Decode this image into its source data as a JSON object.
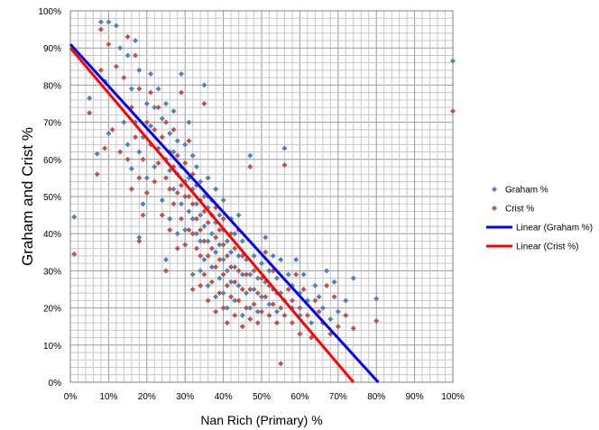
{
  "chart_data": {
    "type": "scatter",
    "xlabel": "Nan Rich (Primary) %",
    "ylabel": "Graham and Crist  %",
    "xlim": [
      0,
      100
    ],
    "ylim": [
      0,
      100
    ],
    "x_ticks": [
      "0%",
      "10%",
      "20%",
      "30%",
      "40%",
      "50%",
      "60%",
      "70%",
      "80%",
      "90%",
      "100%"
    ],
    "y_ticks": [
      "0%",
      "10%",
      "20%",
      "30%",
      "40%",
      "50%",
      "60%",
      "70%",
      "80%",
      "90%",
      "100%"
    ],
    "grid": true,
    "legend_position": "right",
    "series": [
      {
        "name": "Graham %",
        "kind": "scatter",
        "color": "#4f81bd",
        "marker": "diamond",
        "points": [
          [
            1,
            44.5
          ],
          [
            5,
            76.5
          ],
          [
            7,
            61.5
          ],
          [
            8,
            97
          ],
          [
            9,
            81
          ],
          [
            10,
            67
          ],
          [
            10,
            97
          ],
          [
            12,
            96
          ],
          [
            13,
            90
          ],
          [
            14,
            70
          ],
          [
            15,
            64
          ],
          [
            15,
            88
          ],
          [
            16,
            57.5
          ],
          [
            16,
            79
          ],
          [
            17,
            70
          ],
          [
            17,
            92
          ],
          [
            18,
            39
          ],
          [
            18,
            62
          ],
          [
            18,
            84
          ],
          [
            19,
            48
          ],
          [
            19,
            66
          ],
          [
            20,
            55
          ],
          [
            20,
            75
          ],
          [
            21,
            69
          ],
          [
            21,
            83
          ],
          [
            22,
            58
          ],
          [
            22,
            74
          ],
          [
            23,
            63
          ],
          [
            23,
            79
          ],
          [
            24,
            49
          ],
          [
            24,
            71
          ],
          [
            25,
            33
          ],
          [
            25,
            60
          ],
          [
            25,
            75
          ],
          [
            26,
            44
          ],
          [
            26,
            57
          ],
          [
            26,
            67
          ],
          [
            27,
            52
          ],
          [
            27,
            62
          ],
          [
            27,
            73
          ],
          [
            28,
            40
          ],
          [
            28,
            56
          ],
          [
            28,
            65
          ],
          [
            29,
            48
          ],
          [
            29,
            58
          ],
          [
            29,
            83
          ],
          [
            30,
            41
          ],
          [
            30,
            54
          ],
          [
            30,
            64
          ],
          [
            31,
            46
          ],
          [
            31,
            55
          ],
          [
            31,
            70
          ],
          [
            32,
            29
          ],
          [
            32,
            44
          ],
          [
            32,
            52
          ],
          [
            32,
            61
          ],
          [
            33,
            40
          ],
          [
            33,
            48
          ],
          [
            33,
            58
          ],
          [
            34,
            30
          ],
          [
            34,
            38
          ],
          [
            34,
            45
          ],
          [
            34,
            54
          ],
          [
            35,
            33
          ],
          [
            35,
            42
          ],
          [
            35,
            50
          ],
          [
            35,
            80
          ],
          [
            36,
            26
          ],
          [
            36,
            38
          ],
          [
            36,
            47
          ],
          [
            36,
            55
          ],
          [
            37,
            31
          ],
          [
            37,
            40
          ],
          [
            37,
            49
          ],
          [
            38,
            23
          ],
          [
            38,
            35
          ],
          [
            38,
            43
          ],
          [
            38,
            52
          ],
          [
            39,
            28
          ],
          [
            39,
            37
          ],
          [
            39,
            45
          ],
          [
            40,
            24
          ],
          [
            40,
            33
          ],
          [
            40,
            41
          ],
          [
            40,
            49
          ],
          [
            41,
            20
          ],
          [
            41,
            30
          ],
          [
            41,
            38
          ],
          [
            42,
            27
          ],
          [
            42,
            35
          ],
          [
            42,
            44
          ],
          [
            43,
            22
          ],
          [
            43,
            31
          ],
          [
            43,
            40
          ],
          [
            44,
            26
          ],
          [
            44,
            34
          ],
          [
            44,
            45
          ],
          [
            45,
            18
          ],
          [
            45,
            29
          ],
          [
            45,
            38
          ],
          [
            46,
            24
          ],
          [
            46,
            33
          ],
          [
            47,
            20
          ],
          [
            47,
            29
          ],
          [
            47,
            61
          ],
          [
            48,
            25
          ],
          [
            48,
            34
          ],
          [
            49,
            19
          ],
          [
            49,
            28
          ],
          [
            50,
            23
          ],
          [
            50,
            32
          ],
          [
            51,
            27
          ],
          [
            51,
            39
          ],
          [
            52,
            21
          ],
          [
            52,
            30
          ],
          [
            53,
            25
          ],
          [
            53,
            34
          ],
          [
            54,
            19
          ],
          [
            54,
            28
          ],
          [
            55,
            24
          ],
          [
            55,
            33
          ],
          [
            56,
            63
          ],
          [
            56,
            22
          ],
          [
            57,
            29
          ],
          [
            58,
            20
          ],
          [
            58,
            26
          ],
          [
            59,
            33
          ],
          [
            60,
            24
          ],
          [
            60,
            18
          ],
          [
            61,
            29
          ],
          [
            62,
            22
          ],
          [
            63,
            16
          ],
          [
            64,
            26
          ],
          [
            65,
            23
          ],
          [
            66,
            20
          ],
          [
            67,
            30
          ],
          [
            68,
            17
          ],
          [
            69,
            27
          ],
          [
            70,
            19
          ],
          [
            72,
            22
          ],
          [
            74,
            28
          ],
          [
            80,
            22.5
          ],
          [
            100,
            86.5
          ]
        ]
      },
      {
        "name": "Crist %",
        "kind": "scatter",
        "color": "#c0504d",
        "marker": "diamond",
        "points": [
          [
            1,
            34.5
          ],
          [
            5,
            72.5
          ],
          [
            7,
            56
          ],
          [
            8,
            95
          ],
          [
            8,
            84
          ],
          [
            9,
            63
          ],
          [
            10,
            91
          ],
          [
            11,
            68
          ],
          [
            12,
            85
          ],
          [
            13,
            62
          ],
          [
            14,
            82
          ],
          [
            15,
            60
          ],
          [
            15,
            93
          ],
          [
            16,
            52
          ],
          [
            16,
            74
          ],
          [
            17,
            66
          ],
          [
            17,
            88
          ],
          [
            18,
            38
          ],
          [
            18,
            55
          ],
          [
            18,
            79
          ],
          [
            19,
            45
          ],
          [
            19,
            60
          ],
          [
            20,
            51
          ],
          [
            20,
            70
          ],
          [
            21,
            64
          ],
          [
            21,
            78
          ],
          [
            22,
            54
          ],
          [
            22,
            68
          ],
          [
            23,
            59
          ],
          [
            23,
            74
          ],
          [
            24,
            45
          ],
          [
            24,
            66
          ],
          [
            25,
            30
          ],
          [
            25,
            55
          ],
          [
            25,
            70
          ],
          [
            26,
            41
          ],
          [
            26,
            52
          ],
          [
            26,
            62
          ],
          [
            27,
            48
          ],
          [
            27,
            58
          ],
          [
            27,
            68
          ],
          [
            28,
            36
          ],
          [
            28,
            51
          ],
          [
            28,
            61
          ],
          [
            29,
            44
          ],
          [
            29,
            53
          ],
          [
            29,
            78
          ],
          [
            30,
            37
          ],
          [
            30,
            50
          ],
          [
            30,
            59
          ],
          [
            31,
            41
          ],
          [
            31,
            50
          ],
          [
            31,
            65
          ],
          [
            32,
            25
          ],
          [
            32,
            40
          ],
          [
            32,
            48
          ],
          [
            32,
            56
          ],
          [
            33,
            36
          ],
          [
            33,
            44
          ],
          [
            33,
            53
          ],
          [
            34,
            26
          ],
          [
            34,
            34
          ],
          [
            34,
            41
          ],
          [
            34,
            49
          ],
          [
            35,
            29
          ],
          [
            35,
            38
          ],
          [
            35,
            46
          ],
          [
            35,
            75
          ],
          [
            36,
            22
          ],
          [
            36,
            34
          ],
          [
            36,
            43
          ],
          [
            36,
            50
          ],
          [
            37,
            27
          ],
          [
            37,
            36
          ],
          [
            37,
            45
          ],
          [
            38,
            19
          ],
          [
            38,
            31
          ],
          [
            38,
            39
          ],
          [
            38,
            47
          ],
          [
            39,
            24
          ],
          [
            39,
            33
          ],
          [
            39,
            41
          ],
          [
            40,
            20
          ],
          [
            40,
            29
          ],
          [
            40,
            37
          ],
          [
            40,
            44
          ],
          [
            41,
            16
          ],
          [
            41,
            26
          ],
          [
            41,
            34
          ],
          [
            42,
            23
          ],
          [
            42,
            31
          ],
          [
            42,
            40
          ],
          [
            43,
            18
          ],
          [
            43,
            27
          ],
          [
            43,
            36
          ],
          [
            44,
            22
          ],
          [
            44,
            30
          ],
          [
            44,
            41
          ],
          [
            45,
            15
          ],
          [
            45,
            25
          ],
          [
            45,
            34
          ],
          [
            46,
            20
          ],
          [
            46,
            29
          ],
          [
            47,
            17
          ],
          [
            47,
            25
          ],
          [
            47,
            58
          ],
          [
            48,
            21
          ],
          [
            48,
            30
          ],
          [
            49,
            16
          ],
          [
            49,
            24
          ],
          [
            50,
            19
          ],
          [
            50,
            28
          ],
          [
            51,
            23
          ],
          [
            51,
            35
          ],
          [
            52,
            18
          ],
          [
            52,
            26
          ],
          [
            53,
            21
          ],
          [
            53,
            30
          ],
          [
            54,
            16
          ],
          [
            54,
            24
          ],
          [
            55,
            5
          ],
          [
            55,
            20
          ],
          [
            56,
            58.5
          ],
          [
            56,
            18
          ],
          [
            57,
            25
          ],
          [
            58,
            16
          ],
          [
            58,
            22
          ],
          [
            59,
            29
          ],
          [
            60,
            20
          ],
          [
            60,
            13
          ],
          [
            61,
            25
          ],
          [
            62,
            18
          ],
          [
            63,
            12
          ],
          [
            64,
            22
          ],
          [
            65,
            19
          ],
          [
            66,
            16
          ],
          [
            67,
            26
          ],
          [
            68,
            13
          ],
          [
            69,
            23
          ],
          [
            70,
            15
          ],
          [
            72,
            18
          ],
          [
            74,
            14.5
          ],
          [
            80,
            16.5
          ],
          [
            100,
            73
          ]
        ]
      },
      {
        "name": "Linear (Graham %)",
        "kind": "line",
        "color": "#0000ff",
        "points": [
          [
            0,
            91
          ],
          [
            80.5,
            0
          ]
        ]
      },
      {
        "name": "Linear (Crist %)",
        "kind": "line",
        "color": "#ff0000",
        "points": [
          [
            0,
            90
          ],
          [
            74,
            0
          ]
        ]
      }
    ]
  }
}
